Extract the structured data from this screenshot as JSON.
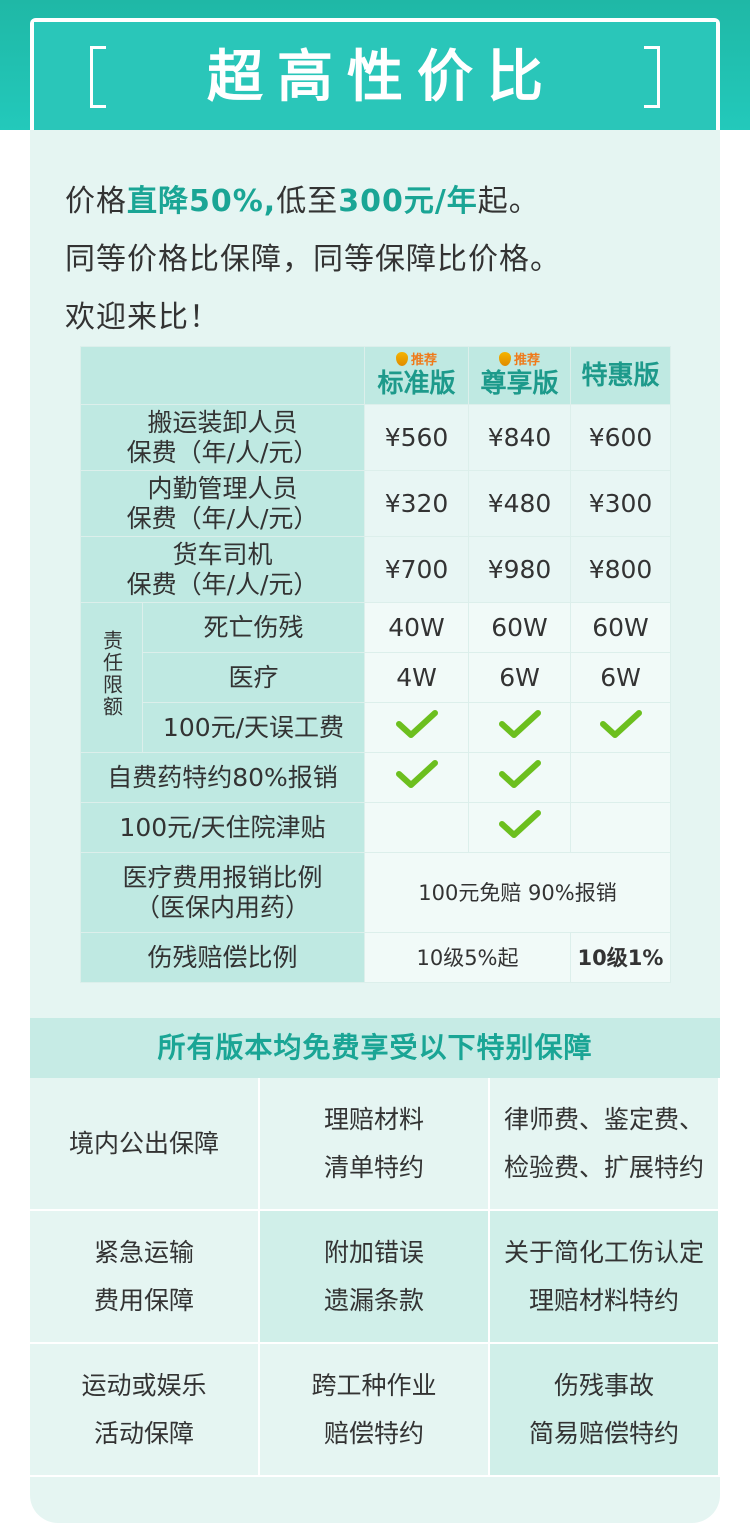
{
  "title": "超高性价比",
  "intro": {
    "line1_a": "价格",
    "line1_hl1": "直降50%,",
    "line1_b": "低至",
    "line1_hl2": "300元/年",
    "line1_c": "起。",
    "line2": "同等价格比保障，同等保障比价格。",
    "line3": "欢迎来比！"
  },
  "table": {
    "badge": "推荐",
    "plans": [
      "标准版",
      "尊享版",
      "特惠版"
    ],
    "premium_rows": [
      {
        "label_1": "搬运装卸人员",
        "label_2": "保费（年/人/元）",
        "values": [
          "¥560",
          "¥840",
          "¥600"
        ]
      },
      {
        "label_1": "内勤管理人员",
        "label_2": "保费（年/人/元）",
        "values": [
          "¥320",
          "¥480",
          "¥300"
        ]
      },
      {
        "label_1": "货车司机",
        "label_2": "保费（年/人/元）",
        "values": [
          "¥700",
          "¥980",
          "¥800"
        ]
      }
    ],
    "liability_group_label": "责任限额",
    "liability_rows": [
      {
        "label": "死亡伤残",
        "values": [
          "40W",
          "60W",
          "60W"
        ]
      },
      {
        "label": "医疗",
        "values": [
          "4W",
          "6W",
          "6W"
        ]
      },
      {
        "label": "100元/天误工费",
        "checks": [
          true,
          true,
          true
        ]
      }
    ],
    "extra_rows": [
      {
        "label": "自费药特约80%报销",
        "checks": [
          true,
          true,
          false
        ]
      },
      {
        "label": "100元/天住院津贴",
        "checks": [
          false,
          true,
          false
        ]
      }
    ],
    "medical_ratio": {
      "label_1": "医疗费用报销比例",
      "label_2": "（医保内用药）",
      "value": "100元免赔 90%报销"
    },
    "disability_ratio": {
      "label": "伤残赔偿比例",
      "value_a": "10级5%起",
      "value_b": "10级1%"
    }
  },
  "section_title": "所有版本均免费享受以下特别保障",
  "benefits": [
    {
      "l1": "境内公出保障",
      "l2": ""
    },
    {
      "l1": "理赔材料",
      "l2": "清单特约"
    },
    {
      "l1": "律师费、鉴定费、",
      "l2": "检验费、扩展特约"
    },
    {
      "l1": "紧急运输",
      "l2": "费用保障"
    },
    {
      "l1": "附加错误",
      "l2": "遗漏条款"
    },
    {
      "l1": "关于简化工伤认定",
      "l2": "理赔材料特约"
    },
    {
      "l1": "运动或娱乐",
      "l2": "活动保障"
    },
    {
      "l1": "跨工种作业",
      "l2": "赔偿特约"
    },
    {
      "l1": "伤残事故",
      "l2": "简易赔偿特约"
    }
  ],
  "colors": {
    "accent": "#1aa595",
    "header": "#2ac6b9",
    "card": "#e5f5f2",
    "check": "#6cbf1e"
  }
}
